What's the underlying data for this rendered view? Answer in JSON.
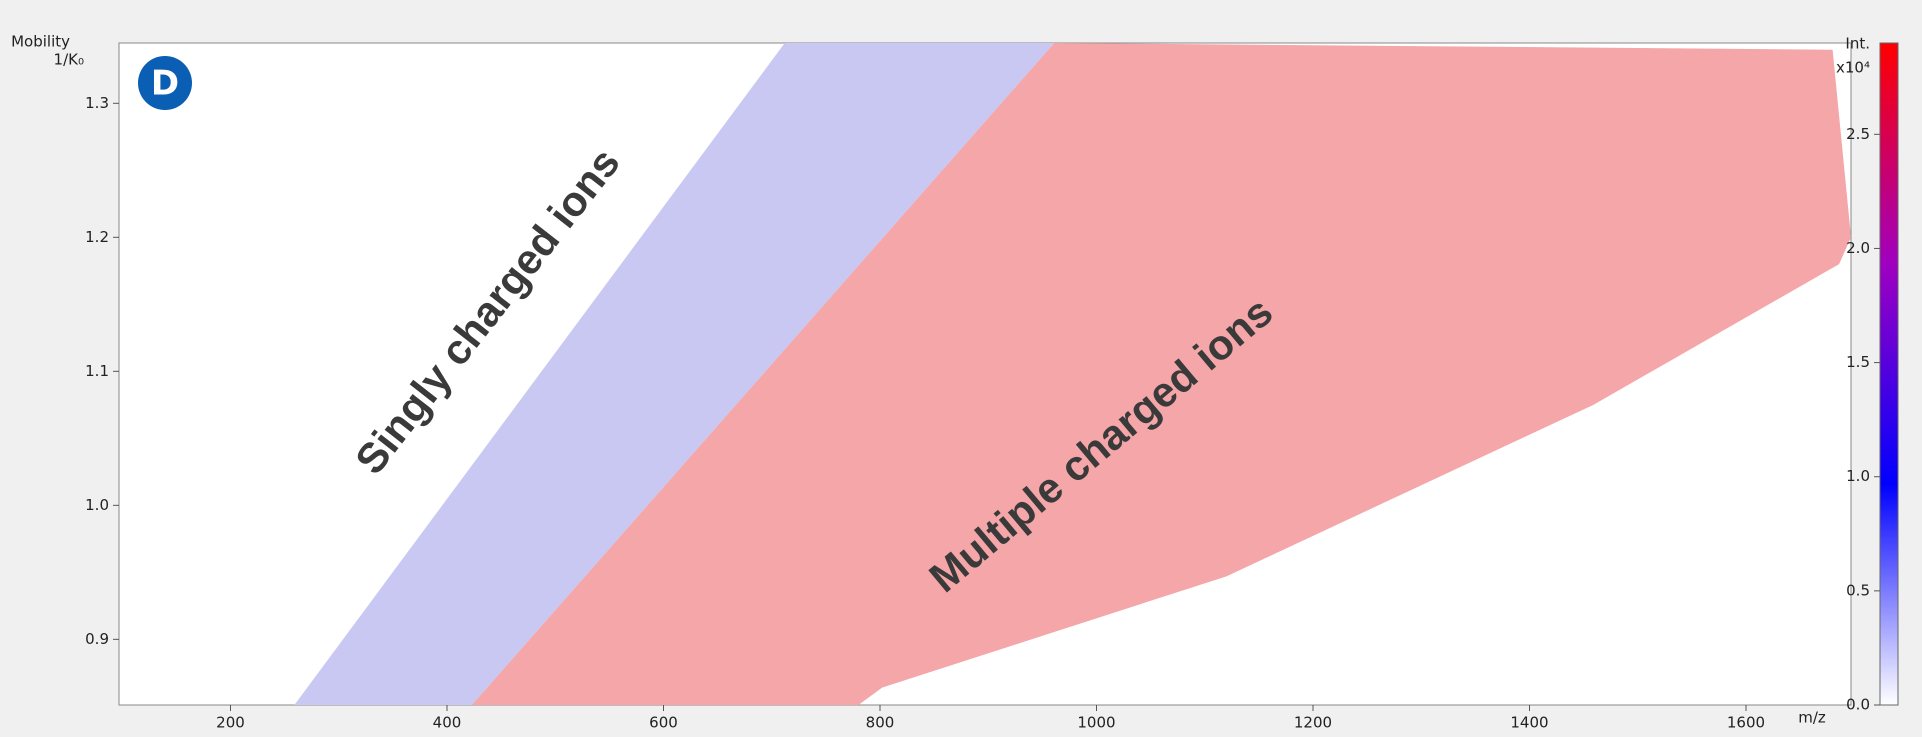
{
  "chart_data": {
    "type": "heatmap",
    "panel_label": "D",
    "y_label_top": "Mobility",
    "y_label": "1/K₀",
    "x_label": "m/z",
    "colorbar_label": "Int.",
    "colorbar_unit": "x10⁴",
    "annotations": [
      "Singly charged ions",
      "Multiple charged ions"
    ],
    "xlim": [
      97,
      1697
    ],
    "ylim": [
      0.851,
      1.345
    ],
    "xticks": [
      200,
      400,
      600,
      800,
      1000,
      1200,
      1400,
      1600
    ],
    "yticks": [
      0.9,
      {
        "value": 1,
        "label": "1.0"
      },
      1.1,
      1.2,
      1.3
    ],
    "clim": [
      0,
      2.9
    ],
    "cticks": [
      {
        "value": 0,
        "label": "0.0"
      },
      0.5,
      {
        "value": 1,
        "label": "1.0"
      },
      1.5,
      {
        "value": 2,
        "label": "2.0"
      },
      2.5
    ],
    "colormap": [
      "#ffffff",
      "#0000ff",
      "#a000c0",
      "#ff0000"
    ],
    "regions": [
      {
        "color": "#c8c8f2",
        "x": [
          259,
          712,
          961,
          423
        ],
        "y": [
          0.851,
          1.345,
          1.345,
          0.851
        ]
      },
      {
        "color": "#f4a6a8",
        "x": [
          423,
          961,
          1680,
          1697,
          1686,
          1459,
          1120,
          802,
          780
        ],
        "y": [
          0.851,
          1.345,
          1.34,
          1.2,
          1.18,
          1.075,
          0.947,
          0.864,
          0.851
        ]
      }
    ]
  }
}
